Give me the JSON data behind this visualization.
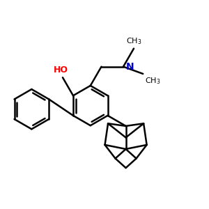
{
  "bg_color": "#ffffff",
  "bond_color": "#000000",
  "oh_color": "#ff0000",
  "n_color": "#0000cc",
  "lw": 1.8,
  "figsize": [
    3.0,
    3.0
  ],
  "dpi": 100,
  "R": 0.092
}
